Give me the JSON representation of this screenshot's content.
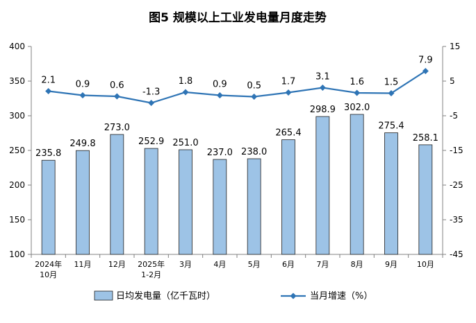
{
  "chart_data": {
    "type": "bar+line",
    "title": "图5  规模以上工业发电量月度走势",
    "categories": [
      [
        "2024年",
        "10月"
      ],
      [
        "11月"
      ],
      [
        "12月"
      ],
      [
        "2025年",
        "1-2月"
      ],
      [
        "3月"
      ],
      [
        "4月"
      ],
      [
        "5月"
      ],
      [
        "6月"
      ],
      [
        "7月"
      ],
      [
        "8月"
      ],
      [
        "9月"
      ],
      [
        "10月"
      ]
    ],
    "series": [
      {
        "name": "日均发电量（亿千瓦时）",
        "type": "bar",
        "axis": "left",
        "values": [
          235.8,
          249.8,
          273.0,
          252.9,
          251.0,
          237.0,
          238.0,
          265.4,
          298.9,
          302.0,
          275.4,
          258.1
        ],
        "labels": [
          "235.8",
          "249.8",
          "273.0",
          "252.9",
          "251.0",
          "237.0",
          "238.0",
          "265.4",
          "298.9",
          "302.0",
          "275.4",
          "258.1"
        ]
      },
      {
        "name": "当月增速（%）",
        "type": "line",
        "axis": "right",
        "values": [
          2.1,
          0.9,
          0.6,
          -1.3,
          1.8,
          0.9,
          0.5,
          1.7,
          3.1,
          1.6,
          1.5,
          7.9
        ],
        "labels": [
          "2.1",
          "0.9",
          "0.6",
          "-1.3",
          "1.8",
          "0.9",
          "0.5",
          "1.7",
          "3.1",
          "1.6",
          "1.5",
          "7.9"
        ]
      }
    ],
    "left_axis": {
      "min": 100,
      "max": 400,
      "ticks": [
        "100",
        "150",
        "200",
        "250",
        "300",
        "350",
        "400"
      ]
    },
    "right_axis": {
      "min": -45,
      "max": 15,
      "ticks": [
        "-45",
        "-35",
        "-25",
        "-15",
        "-5",
        "5",
        "15"
      ]
    },
    "grid": false,
    "legend_position": "bottom",
    "colors": {
      "bar_fill": "#9DC3E6",
      "bar_stroke": "#1F1F1F",
      "line": "#2E74B5",
      "axis": "#808080"
    }
  }
}
